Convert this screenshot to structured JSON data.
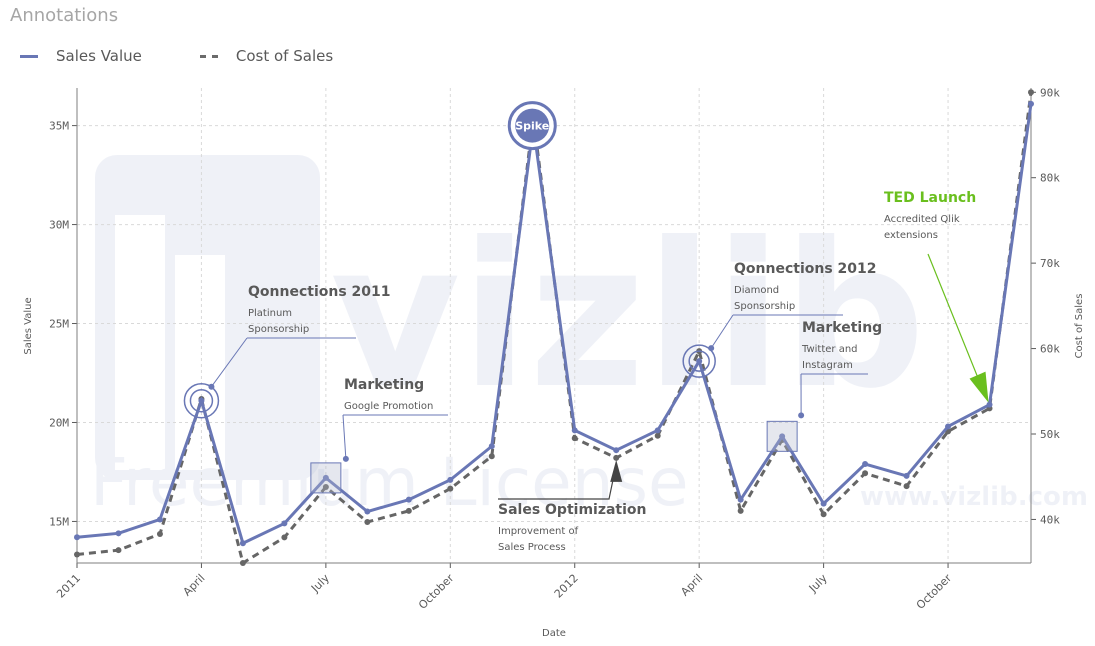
{
  "title": "Annotations",
  "legend": {
    "sales_label": "Sales Value",
    "cost_label": "Cost of Sales"
  },
  "colors": {
    "sales": "#6977b5",
    "cost": "#666666",
    "accent_green": "#6abf1e",
    "grid": "#d9d9d9"
  },
  "watermark": {
    "logo": "vizlib",
    "license": "Freemium License",
    "url": "www.vizlib.com"
  },
  "chart_data": {
    "type": "line",
    "xlabel": "Date",
    "ylabel_left": "Sales Value",
    "ylabel_right": "Cost of Sales",
    "x_ticks": [
      "2011",
      "April",
      "July",
      "October",
      "2012",
      "April",
      "July",
      "October"
    ],
    "x_tick_index": [
      0,
      3,
      6,
      9,
      12,
      15,
      18,
      21
    ],
    "x_months": [
      "2011-01",
      "2011-02",
      "2011-03",
      "2011-04",
      "2011-05",
      "2011-06",
      "2011-07",
      "2011-08",
      "2011-09",
      "2011-10",
      "2011-11",
      "2011-12",
      "2012-01",
      "2012-02",
      "2012-03",
      "2012-04",
      "2012-05",
      "2012-06",
      "2012-07",
      "2012-08",
      "2012-09",
      "2012-10",
      "2012-11",
      "2012-12"
    ],
    "y_left_range": [
      12.9,
      36.9
    ],
    "y_left_ticks": [
      15,
      20,
      25,
      30,
      35
    ],
    "y_left_tick_labels": [
      "15M",
      "20M",
      "25M",
      "30M",
      "35M"
    ],
    "y_right_range": [
      34900,
      90500
    ],
    "y_right_ticks": [
      40000,
      50000,
      60000,
      70000,
      80000,
      90000
    ],
    "y_right_tick_labels": [
      "40k",
      "50k",
      "60k",
      "70k",
      "80k",
      "90k"
    ],
    "grid": true,
    "legend_position": "top-left",
    "series": [
      {
        "name": "Sales Value",
        "axis": "left",
        "style": "solid",
        "values": [
          14.2,
          14.4,
          15.1,
          21.1,
          13.9,
          14.9,
          17.2,
          15.5,
          16.1,
          17.1,
          18.8,
          35.0,
          19.6,
          18.6,
          19.6,
          23.1,
          16.1,
          19.3,
          15.9,
          17.9,
          17.3,
          19.8,
          20.9,
          36.1
        ]
      },
      {
        "name": "Cost of Sales",
        "axis": "right",
        "style": "dashed",
        "values": [
          35900,
          36400,
          38300,
          54100,
          34900,
          37900,
          43800,
          39700,
          41000,
          43600,
          47400,
          87000,
          49500,
          47200,
          49800,
          59700,
          41000,
          49300,
          40600,
          45400,
          43900,
          50300,
          53000,
          90000
        ]
      }
    ],
    "annotations": [
      {
        "title": "Qonnections 2011",
        "lines": [
          "Platinum",
          "Sponsorship"
        ],
        "marker": "circle",
        "index": 3
      },
      {
        "title": "Marketing",
        "lines": [
          "Google Promotion"
        ],
        "marker": "square",
        "index": 6
      },
      {
        "title": "Spike",
        "lines": [],
        "marker": "spike",
        "index": 11
      },
      {
        "title": "Sales Optimization",
        "lines": [
          "Improvement of",
          "Sales Process"
        ],
        "marker": "arrow",
        "index": 13
      },
      {
        "title": "Qonnections 2012",
        "lines": [
          "Diamond",
          "Sponsorship"
        ],
        "marker": "circle",
        "index": 15
      },
      {
        "title": "Marketing",
        "lines": [
          "Twitter and",
          "Instagram"
        ],
        "marker": "square",
        "index": 17
      },
      {
        "title": "TED Launch",
        "lines": [
          "Accredited Qlik",
          "extensions"
        ],
        "marker": "green-arrow",
        "index": 22
      }
    ]
  }
}
